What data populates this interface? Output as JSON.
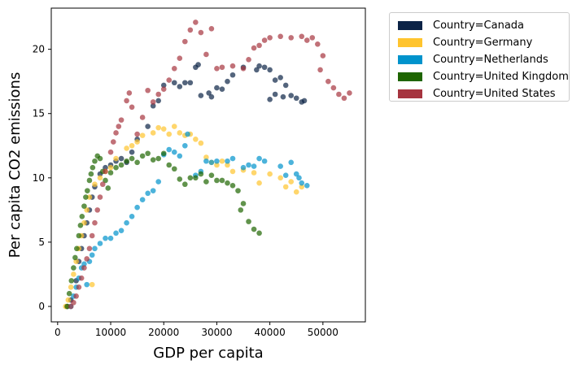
{
  "chart_data": {
    "type": "scatter",
    "xlabel": "GDP per capita",
    "ylabel": "Per capita CO2 emissions",
    "xlim": [
      -1200,
      58000
    ],
    "ylim": [
      -1.2,
      23.2
    ],
    "xticks": [
      "0",
      "10000",
      "20000",
      "30000",
      "40000",
      "50000"
    ],
    "xtick_values": [
      0,
      10000,
      20000,
      30000,
      40000,
      50000
    ],
    "yticks": [
      "0",
      "5",
      "10",
      "15",
      "20"
    ],
    "ytick_values": [
      0,
      5,
      10,
      15,
      20
    ],
    "grid": false,
    "legend_position": "outside-top-right",
    "series": [
      {
        "name": "Country=Canada",
        "color": "#0b2346",
        "points": [
          [
            1800,
            0
          ],
          [
            2500,
            0.5
          ],
          [
            3500,
            2
          ],
          [
            4000,
            3.5
          ],
          [
            4500,
            4.5
          ],
          [
            5000,
            5.5
          ],
          [
            5500,
            6.5
          ],
          [
            6000,
            7.5
          ],
          [
            6500,
            8.5
          ],
          [
            7000,
            9.3
          ],
          [
            8000,
            10.3
          ],
          [
            9000,
            10.8
          ],
          [
            10000,
            11
          ],
          [
            11000,
            11.3
          ],
          [
            12000,
            11.5
          ],
          [
            13000,
            11.2
          ],
          [
            14000,
            12
          ],
          [
            15000,
            13
          ],
          [
            17000,
            14
          ],
          [
            18000,
            15.6
          ],
          [
            19000,
            16
          ],
          [
            20000,
            17.2
          ],
          [
            22000,
            17.4
          ],
          [
            23000,
            17.1
          ],
          [
            24000,
            17.4
          ],
          [
            25000,
            17.4
          ],
          [
            26000,
            18.6
          ],
          [
            26500,
            18.8
          ],
          [
            27000,
            16.4
          ],
          [
            29000,
            16.3
          ],
          [
            28500,
            16.6
          ],
          [
            30000,
            17
          ],
          [
            31000,
            16.9
          ],
          [
            32000,
            17.5
          ],
          [
            33000,
            18
          ],
          [
            35000,
            18.6
          ],
          [
            38000,
            18.7
          ],
          [
            37500,
            18.4
          ],
          [
            39000,
            18.6
          ],
          [
            40000,
            18.4
          ],
          [
            41000,
            17.6
          ],
          [
            42000,
            17.8
          ],
          [
            43000,
            17.2
          ],
          [
            42500,
            16.3
          ],
          [
            44000,
            16.4
          ],
          [
            45000,
            16.2
          ],
          [
            46000,
            15.9
          ],
          [
            46500,
            16
          ],
          [
            41000,
            16.5
          ],
          [
            40000,
            16.1
          ]
        ]
      },
      {
        "name": "Country=Germany",
        "color": "#ffc42e",
        "points": [
          [
            1500,
            0
          ],
          [
            2000,
            0.5
          ],
          [
            2500,
            1.5
          ],
          [
            3000,
            2.5
          ],
          [
            3500,
            3.5
          ],
          [
            4000,
            4.5
          ],
          [
            4500,
            5.5
          ],
          [
            5000,
            6.5
          ],
          [
            5500,
            7.5
          ],
          [
            6000,
            8.5
          ],
          [
            6500,
            1.7
          ],
          [
            7000,
            9.5
          ],
          [
            8000,
            10
          ],
          [
            9000,
            10.5
          ],
          [
            10000,
            10.8
          ],
          [
            11000,
            11.5
          ],
          [
            13000,
            12.3
          ],
          [
            14000,
            12.5
          ],
          [
            15000,
            12.8
          ],
          [
            16000,
            13.3
          ],
          [
            18000,
            13.5
          ],
          [
            19000,
            13.9
          ],
          [
            20000,
            13.8
          ],
          [
            21000,
            13.4
          ],
          [
            22000,
            14
          ],
          [
            23000,
            13.5
          ],
          [
            24000,
            13.3
          ],
          [
            25000,
            13.4
          ],
          [
            26000,
            13
          ],
          [
            27000,
            12.7
          ],
          [
            28000,
            11.6
          ],
          [
            29000,
            11.2
          ],
          [
            30000,
            11
          ],
          [
            31000,
            11.3
          ],
          [
            32000,
            11
          ],
          [
            33000,
            10.5
          ],
          [
            35000,
            10.6
          ],
          [
            37000,
            10.4
          ],
          [
            38000,
            9.6
          ],
          [
            40000,
            10.3
          ],
          [
            42000,
            10
          ],
          [
            43000,
            9.3
          ],
          [
            44000,
            9.7
          ],
          [
            45000,
            8.9
          ],
          [
            46000,
            9.3
          ]
        ]
      },
      {
        "name": "Country=Netherlands",
        "color": "#0093cc",
        "points": [
          [
            2500,
            0
          ],
          [
            3000,
            0.8
          ],
          [
            3500,
            1.5
          ],
          [
            4000,
            2.2
          ],
          [
            4500,
            3
          ],
          [
            5000,
            3.3
          ],
          [
            5500,
            1.7
          ],
          [
            6000,
            3.5
          ],
          [
            6500,
            4
          ],
          [
            7000,
            4.5
          ],
          [
            8000,
            4.9
          ],
          [
            9000,
            5.3
          ],
          [
            10000,
            5.3
          ],
          [
            11000,
            5.7
          ],
          [
            12000,
            5.9
          ],
          [
            13000,
            6.5
          ],
          [
            14000,
            7
          ],
          [
            15000,
            7.7
          ],
          [
            16000,
            8.3
          ],
          [
            17000,
            8.8
          ],
          [
            18000,
            9
          ],
          [
            19000,
            9.7
          ],
          [
            20000,
            11.8
          ],
          [
            21000,
            12.2
          ],
          [
            22000,
            12
          ],
          [
            23000,
            11.7
          ],
          [
            24000,
            12.5
          ],
          [
            24500,
            13.4
          ],
          [
            26000,
            10.2
          ],
          [
            27000,
            10.5
          ],
          [
            28000,
            11.3
          ],
          [
            29000,
            11.2
          ],
          [
            30000,
            11.3
          ],
          [
            32000,
            11.3
          ],
          [
            33000,
            11.5
          ],
          [
            35000,
            10.8
          ],
          [
            36000,
            11
          ],
          [
            37000,
            10.9
          ],
          [
            38000,
            11.5
          ],
          [
            39000,
            11.3
          ],
          [
            42000,
            10.9
          ],
          [
            43000,
            10.2
          ],
          [
            44000,
            11.2
          ],
          [
            45000,
            10.3
          ],
          [
            45500,
            10
          ],
          [
            46000,
            9.6
          ],
          [
            47000,
            9.4
          ]
        ]
      },
      {
        "name": "Country=United Kingdom",
        "color": "#1e6500",
        "points": [
          [
            1800,
            0
          ],
          [
            2200,
            1
          ],
          [
            2600,
            2
          ],
          [
            3000,
            3
          ],
          [
            3300,
            3.8
          ],
          [
            3600,
            4.5
          ],
          [
            4000,
            5.5
          ],
          [
            4300,
            6.3
          ],
          [
            4600,
            7
          ],
          [
            5000,
            7.8
          ],
          [
            5300,
            8.5
          ],
          [
            5600,
            9
          ],
          [
            6000,
            9.8
          ],
          [
            6300,
            10.3
          ],
          [
            6600,
            10.8
          ],
          [
            7000,
            11.3
          ],
          [
            7500,
            11.7
          ],
          [
            8000,
            11.5
          ],
          [
            8500,
            10.5
          ],
          [
            9000,
            9.8
          ],
          [
            9500,
            9.2
          ],
          [
            10000,
            10.4
          ],
          [
            11000,
            10.8
          ],
          [
            12000,
            11
          ],
          [
            13000,
            11.3
          ],
          [
            14000,
            11.5
          ],
          [
            15000,
            11.2
          ],
          [
            16000,
            11.7
          ],
          [
            17000,
            11.9
          ],
          [
            18000,
            11.4
          ],
          [
            19000,
            11.5
          ],
          [
            20000,
            11.9
          ],
          [
            21000,
            11
          ],
          [
            22000,
            10.7
          ],
          [
            23000,
            9.9
          ],
          [
            24000,
            9.5
          ],
          [
            25000,
            10
          ],
          [
            26000,
            10
          ],
          [
            27000,
            10.3
          ],
          [
            28000,
            9.7
          ],
          [
            29000,
            10.2
          ],
          [
            30000,
            9.8
          ],
          [
            31000,
            9.8
          ],
          [
            32000,
            9.6
          ],
          [
            33000,
            9.4
          ],
          [
            34000,
            9
          ],
          [
            35000,
            8
          ],
          [
            34500,
            7.5
          ],
          [
            36000,
            6.6
          ],
          [
            37000,
            6
          ],
          [
            38000,
            5.7
          ]
        ]
      },
      {
        "name": "Country=United States",
        "color": "#a6343f",
        "points": [
          [
            2500,
            0
          ],
          [
            3000,
            0.3
          ],
          [
            3500,
            0.8
          ],
          [
            4000,
            1.5
          ],
          [
            4500,
            2.2
          ],
          [
            5000,
            3
          ],
          [
            5500,
            3.7
          ],
          [
            6000,
            4.5
          ],
          [
            6500,
            5.5
          ],
          [
            7000,
            6.5
          ],
          [
            7500,
            7.5
          ],
          [
            8000,
            8.5
          ],
          [
            8500,
            9.5
          ],
          [
            9000,
            10.5
          ],
          [
            10000,
            12
          ],
          [
            10500,
            12.8
          ],
          [
            11000,
            13.5
          ],
          [
            11500,
            14
          ],
          [
            12000,
            14.5
          ],
          [
            13000,
            16
          ],
          [
            13500,
            16.6
          ],
          [
            14000,
            15.5
          ],
          [
            15000,
            13.4
          ],
          [
            16000,
            14.7
          ],
          [
            17000,
            16.8
          ],
          [
            18000,
            15.9
          ],
          [
            19000,
            16.5
          ],
          [
            20000,
            16.9
          ],
          [
            21000,
            17.6
          ],
          [
            22000,
            18.5
          ],
          [
            23000,
            19.3
          ],
          [
            24000,
            20.6
          ],
          [
            25000,
            21.5
          ],
          [
            26000,
            22.1
          ],
          [
            27000,
            21.3
          ],
          [
            28000,
            19.6
          ],
          [
            29000,
            21.6
          ],
          [
            30000,
            18.5
          ],
          [
            31000,
            18.6
          ],
          [
            33000,
            18.7
          ],
          [
            35000,
            18.5
          ],
          [
            36000,
            19.2
          ],
          [
            37000,
            20.1
          ],
          [
            38000,
            20.3
          ],
          [
            39000,
            20.7
          ],
          [
            40000,
            20.9
          ],
          [
            42000,
            21
          ],
          [
            44000,
            20.9
          ],
          [
            46000,
            21
          ],
          [
            47000,
            20.7
          ],
          [
            48000,
            20.9
          ],
          [
            49000,
            20.4
          ],
          [
            50000,
            19.5
          ],
          [
            49500,
            18.4
          ],
          [
            51000,
            17.5
          ],
          [
            52000,
            17
          ],
          [
            53000,
            16.5
          ],
          [
            54000,
            16.2
          ],
          [
            55000,
            16.6
          ]
        ]
      }
    ]
  }
}
